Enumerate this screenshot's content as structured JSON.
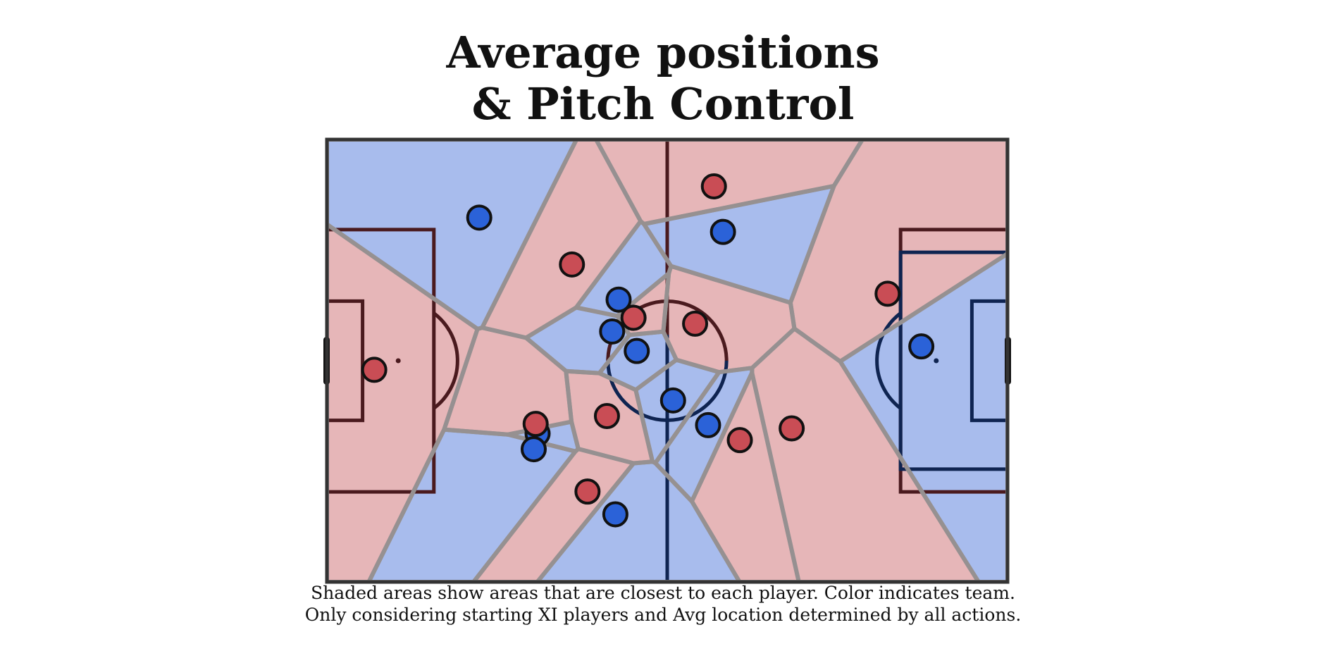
{
  "chart_data": {
    "type": "scatter",
    "title_lines": [
      "Average positions",
      "& Pitch Control"
    ],
    "caption_lines": [
      "Shaded areas show areas that are closest to each player. Color indicates team.",
      "Only considering starting XI players and Avg location determined by all actions."
    ],
    "pitch": {
      "length": 105,
      "width": 68
    },
    "team_colors": {
      "blue": "#2b62d8",
      "red": "#c94d55"
    },
    "region_colors": {
      "blue": "#a8bced",
      "red": "#e6b6b8"
    },
    "line_colors": {
      "blue": "#0f2451",
      "red": "#4a1a1e"
    },
    "border_color": "#333333",
    "cell_edge_color": "#969090",
    "series": [
      {
        "team": "blue",
        "x": [
          45.0,
          23.5,
          44.0,
          47.8,
          53.4,
          61.1,
          58.8,
          44.5,
          32.5,
          31.9,
          91.7
        ],
        "y": [
          24.6,
          12.0,
          29.5,
          32.5,
          40.1,
          14.2,
          43.9,
          57.6,
          45.2,
          47.6,
          31.8
        ]
      },
      {
        "team": "red",
        "x": [
          59.7,
          37.8,
          47.3,
          56.8,
          7.3,
          32.2,
          43.2,
          63.7,
          71.7,
          40.2,
          86.5
        ],
        "y": [
          7.2,
          19.2,
          27.4,
          28.3,
          35.4,
          43.7,
          42.5,
          46.2,
          44.4,
          54.1,
          23.7
        ]
      }
    ]
  }
}
